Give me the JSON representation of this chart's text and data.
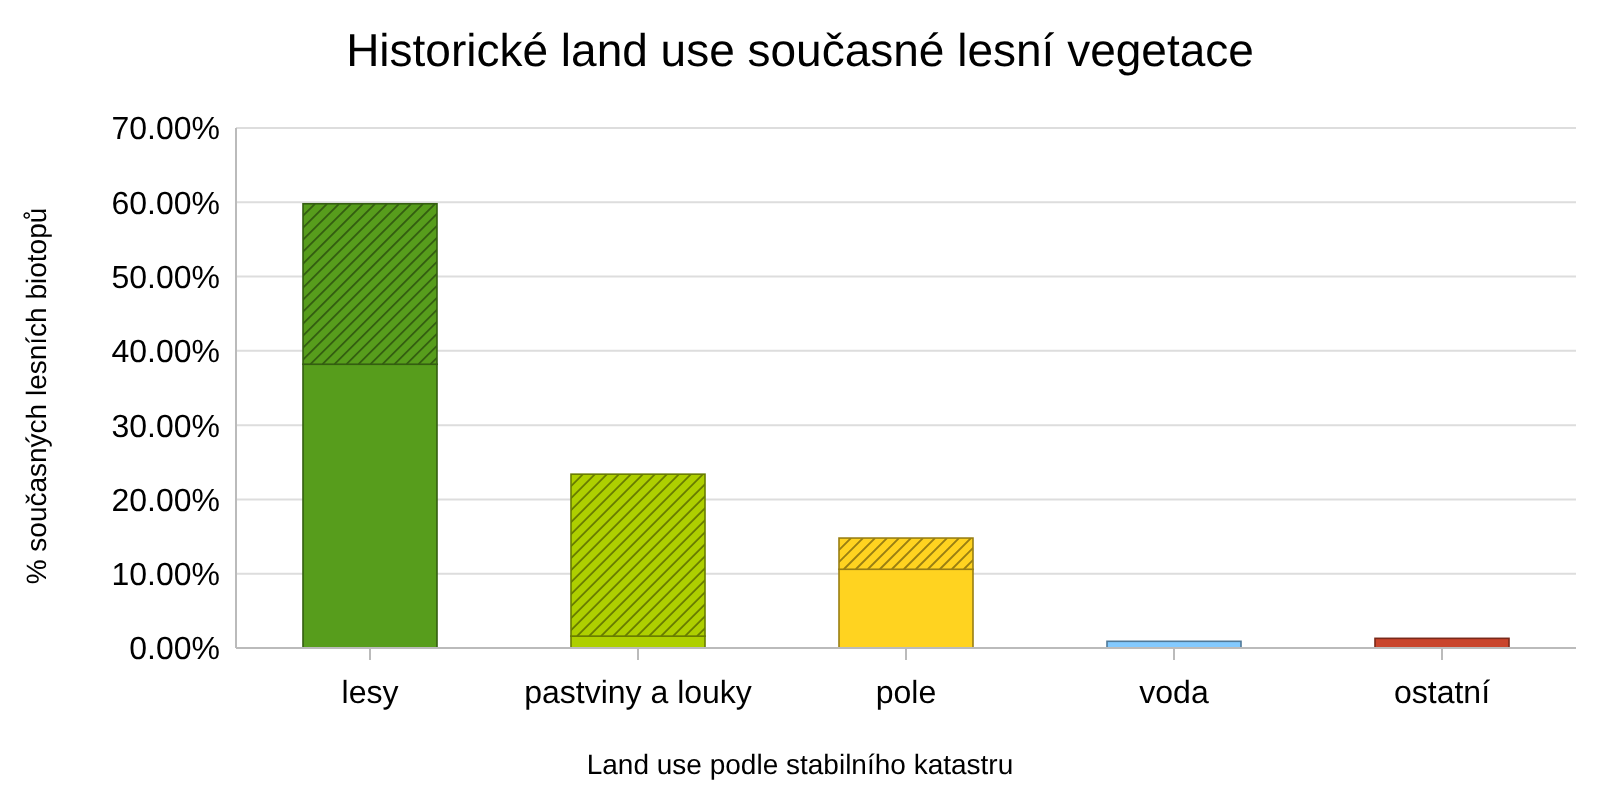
{
  "chart_data": {
    "type": "bar",
    "title": "Historické land use současné lesní vegetace",
    "xlabel": "Land use podle stabilního katastru",
    "ylabel": "% současných lesních biotopů",
    "categories": [
      "lesy",
      "pastviny a louky",
      "pole",
      "voda",
      "ostatní"
    ],
    "stacked": true,
    "series": [
      {
        "colors": [
          "#579d1c",
          "#aecf00",
          "#ffd320",
          "#83caff",
          "#c9452c"
        ],
        "values": [
          38.2,
          1.6,
          10.6,
          0,
          0
        ]
      },
      {
        "colors": [
          "#579d1c",
          "#aecf00",
          "#ffd320",
          "#83caff",
          "#c9452c"
        ],
        "values": [
          21.6,
          21.8,
          4.2,
          0.9,
          1.3
        ]
      }
    ],
    "ylim": [
      0,
      70
    ],
    "yticks": [
      {
        "value": 0,
        "label": "0.00%"
      },
      {
        "value": 10,
        "label": "10.00%"
      },
      {
        "value": 20,
        "label": "20.00%"
      },
      {
        "value": 30,
        "label": "30.00%"
      },
      {
        "value": 40,
        "label": "40.00%"
      },
      {
        "value": 50,
        "label": "50.00%"
      },
      {
        "value": 60,
        "label": "60.00%"
      },
      {
        "value": 70,
        "label": "70.00%"
      }
    ],
    "grid": "y"
  }
}
